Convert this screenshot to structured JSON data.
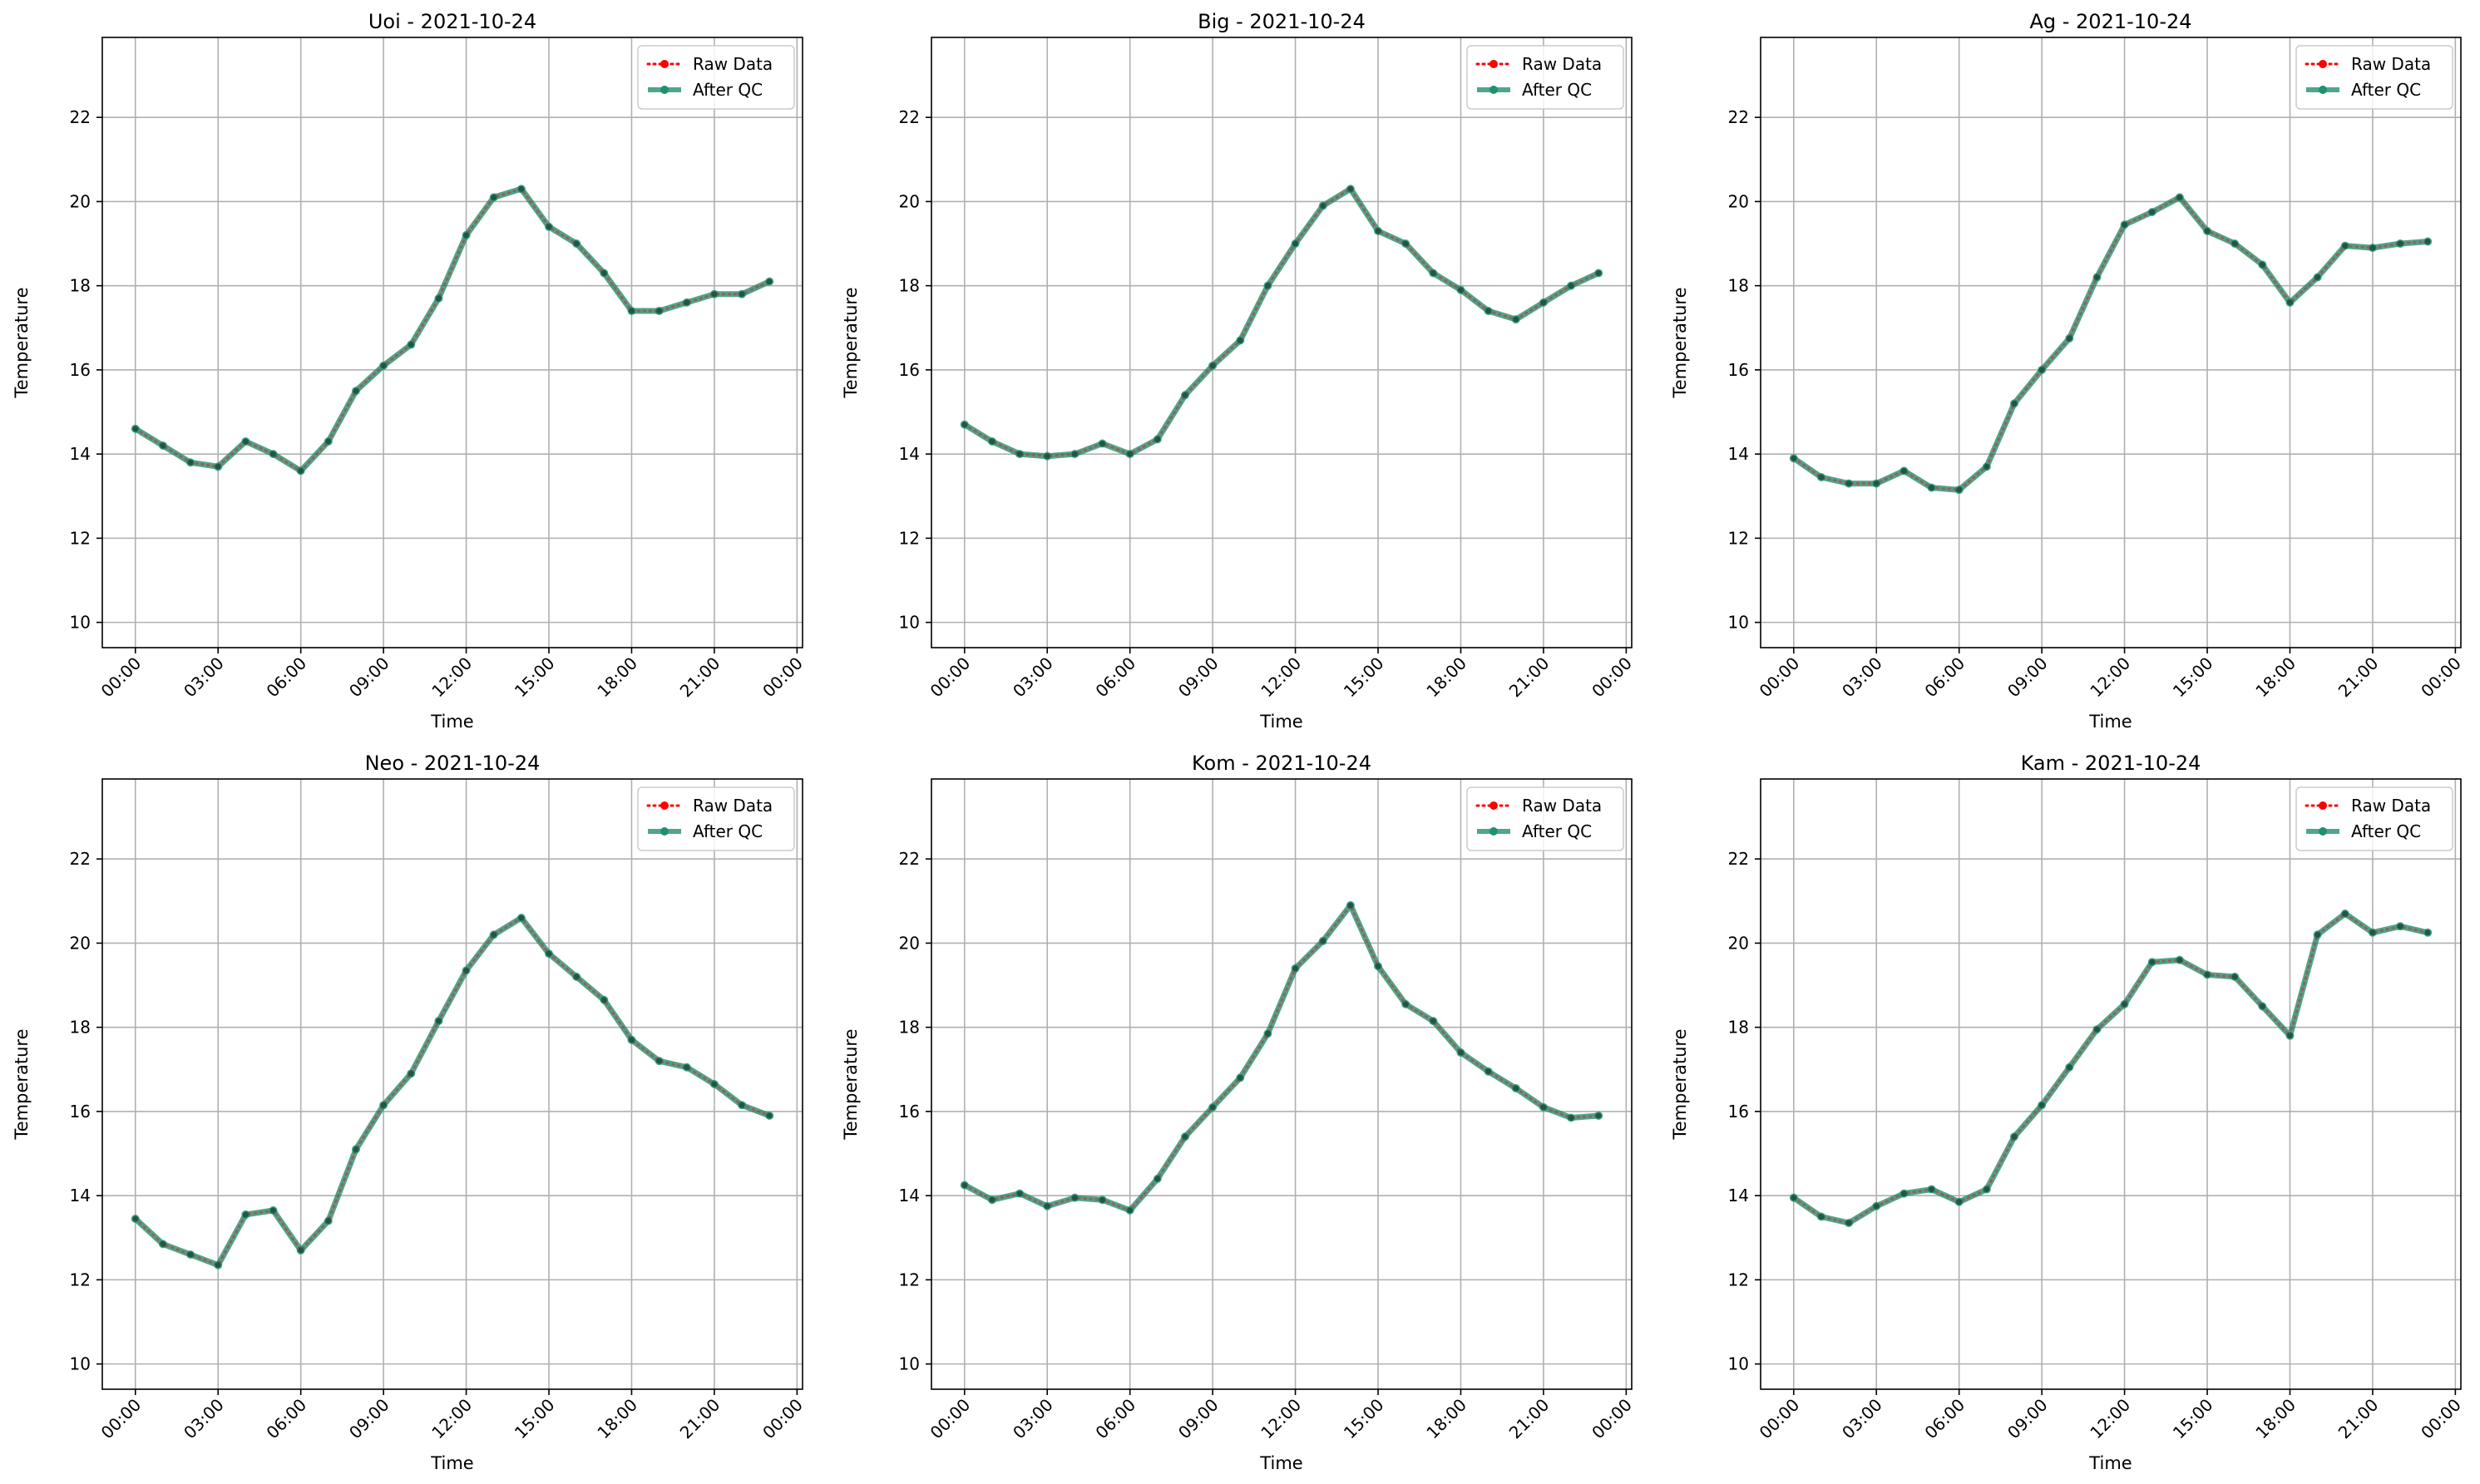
{
  "chart_data": [
    {
      "type": "line",
      "title": "Uoi - 2021-10-24",
      "xlabel": "Time",
      "ylabel": "Temperature",
      "x_tick_labels": [
        "00:00",
        "03:00",
        "06:00",
        "09:00",
        "12:00",
        "15:00",
        "18:00",
        "21:00",
        "00:00"
      ],
      "y_ticks": [
        10,
        12,
        14,
        16,
        18,
        20,
        22
      ],
      "xlim_hours": [
        -1.2,
        24.2
      ],
      "ylim": [
        9.4,
        23.9
      ],
      "grid": true,
      "legend_position": "upper right",
      "x_hours": [
        0,
        1,
        2,
        3,
        4,
        5,
        6,
        7,
        8,
        9,
        10,
        11,
        12,
        13,
        14,
        15,
        16,
        17,
        18,
        19,
        20,
        21,
        22,
        23
      ],
      "series": [
        {
          "name": "Raw Data",
          "color": "#ff0000",
          "style": "dotted",
          "marker": "circle",
          "values": [
            14.6,
            14.2,
            13.8,
            13.7,
            14.3,
            14.0,
            13.6,
            14.3,
            15.5,
            16.1,
            16.6,
            17.7,
            19.2,
            20.1,
            20.3,
            19.4,
            19.0,
            18.3,
            17.4,
            17.4,
            17.6,
            17.8,
            17.8,
            18.1
          ]
        },
        {
          "name": "After QC",
          "color": "#209070",
          "style": "solid",
          "marker": "circle",
          "values": [
            14.6,
            14.2,
            13.8,
            13.7,
            14.3,
            14.0,
            13.6,
            14.3,
            15.5,
            16.1,
            16.6,
            17.7,
            19.2,
            20.1,
            20.3,
            19.4,
            19.0,
            18.3,
            17.4,
            17.4,
            17.6,
            17.8,
            17.8,
            18.1
          ]
        }
      ]
    },
    {
      "type": "line",
      "title": "Big - 2021-10-24",
      "xlabel": "Time",
      "ylabel": "Temperature",
      "x_tick_labels": [
        "00:00",
        "03:00",
        "06:00",
        "09:00",
        "12:00",
        "15:00",
        "18:00",
        "21:00",
        "00:00"
      ],
      "y_ticks": [
        10,
        12,
        14,
        16,
        18,
        20,
        22
      ],
      "xlim_hours": [
        -1.2,
        24.2
      ],
      "ylim": [
        9.4,
        23.9
      ],
      "grid": true,
      "legend_position": "upper right",
      "x_hours": [
        0,
        1,
        2,
        3,
        4,
        5,
        6,
        7,
        8,
        9,
        10,
        11,
        12,
        13,
        14,
        15,
        16,
        17,
        18,
        19,
        20,
        21,
        22,
        23
      ],
      "series": [
        {
          "name": "Raw Data",
          "color": "#ff0000",
          "style": "dotted",
          "marker": "circle",
          "values": [
            14.7,
            14.3,
            14.0,
            13.95,
            14.0,
            14.25,
            14.0,
            14.35,
            15.4,
            16.1,
            16.7,
            18.0,
            19.0,
            19.9,
            20.3,
            19.3,
            19.0,
            18.3,
            17.9,
            17.4,
            17.2,
            17.6,
            18.0,
            18.3
          ]
        },
        {
          "name": "After QC",
          "color": "#209070",
          "style": "solid",
          "marker": "circle",
          "values": [
            14.7,
            14.3,
            14.0,
            13.95,
            14.0,
            14.25,
            14.0,
            14.35,
            15.4,
            16.1,
            16.7,
            18.0,
            19.0,
            19.9,
            20.3,
            19.3,
            19.0,
            18.3,
            17.9,
            17.4,
            17.2,
            17.6,
            18.0,
            18.3
          ]
        }
      ]
    },
    {
      "type": "line",
      "title": "Ag - 2021-10-24",
      "xlabel": "Time",
      "ylabel": "Temperature",
      "x_tick_labels": [
        "00:00",
        "03:00",
        "06:00",
        "09:00",
        "12:00",
        "15:00",
        "18:00",
        "21:00",
        "00:00"
      ],
      "y_ticks": [
        10,
        12,
        14,
        16,
        18,
        20,
        22
      ],
      "xlim_hours": [
        -1.2,
        24.2
      ],
      "ylim": [
        9.4,
        23.9
      ],
      "grid": true,
      "legend_position": "upper right",
      "x_hours": [
        0,
        1,
        2,
        3,
        4,
        5,
        6,
        7,
        8,
        9,
        10,
        11,
        12,
        13,
        14,
        15,
        16,
        17,
        18,
        19,
        20,
        21,
        22,
        23
      ],
      "series": [
        {
          "name": "Raw Data",
          "color": "#ff0000",
          "style": "dotted",
          "marker": "circle",
          "values": [
            13.9,
            13.45,
            13.3,
            13.3,
            13.6,
            13.2,
            13.15,
            13.7,
            15.2,
            16.0,
            16.75,
            18.2,
            19.45,
            19.75,
            20.1,
            19.3,
            19.0,
            18.5,
            17.6,
            18.2,
            18.95,
            18.9,
            19.0,
            19.05
          ]
        },
        {
          "name": "After QC",
          "color": "#209070",
          "style": "solid",
          "marker": "circle",
          "values": [
            13.9,
            13.45,
            13.3,
            13.3,
            13.6,
            13.2,
            13.15,
            13.7,
            15.2,
            16.0,
            16.75,
            18.2,
            19.45,
            19.75,
            20.1,
            19.3,
            19.0,
            18.5,
            17.6,
            18.2,
            18.95,
            18.9,
            19.0,
            19.05
          ]
        }
      ]
    },
    {
      "type": "line",
      "title": "Neo - 2021-10-24",
      "xlabel": "Time",
      "ylabel": "Temperature",
      "x_tick_labels": [
        "00:00",
        "03:00",
        "06:00",
        "09:00",
        "12:00",
        "15:00",
        "18:00",
        "21:00",
        "00:00"
      ],
      "y_ticks": [
        10,
        12,
        14,
        16,
        18,
        20,
        22
      ],
      "xlim_hours": [
        -1.2,
        24.2
      ],
      "ylim": [
        9.4,
        23.9
      ],
      "grid": true,
      "legend_position": "upper right",
      "x_hours": [
        0,
        1,
        2,
        3,
        4,
        5,
        6,
        7,
        8,
        9,
        10,
        11,
        12,
        13,
        14,
        15,
        16,
        17,
        18,
        19,
        20,
        21,
        22,
        23
      ],
      "series": [
        {
          "name": "Raw Data",
          "color": "#ff0000",
          "style": "dotted",
          "marker": "circle",
          "values": [
            13.45,
            12.85,
            12.6,
            12.35,
            13.55,
            13.65,
            12.7,
            13.4,
            15.1,
            16.15,
            16.9,
            18.15,
            19.35,
            20.2,
            20.6,
            19.75,
            19.2,
            18.65,
            17.7,
            17.2,
            17.05,
            16.65,
            16.15,
            15.9
          ]
        },
        {
          "name": "After QC",
          "color": "#209070",
          "style": "solid",
          "marker": "circle",
          "values": [
            13.45,
            12.85,
            12.6,
            12.35,
            13.55,
            13.65,
            12.7,
            13.4,
            15.1,
            16.15,
            16.9,
            18.15,
            19.35,
            20.2,
            20.6,
            19.75,
            19.2,
            18.65,
            17.7,
            17.2,
            17.05,
            16.65,
            16.15,
            15.9
          ]
        }
      ]
    },
    {
      "type": "line",
      "title": "Kom - 2021-10-24",
      "xlabel": "Time",
      "ylabel": "Temperature",
      "x_tick_labels": [
        "00:00",
        "03:00",
        "06:00",
        "09:00",
        "12:00",
        "15:00",
        "18:00",
        "21:00",
        "00:00"
      ],
      "y_ticks": [
        10,
        12,
        14,
        16,
        18,
        20,
        22
      ],
      "xlim_hours": [
        -1.2,
        24.2
      ],
      "ylim": [
        9.4,
        23.9
      ],
      "grid": true,
      "legend_position": "upper right",
      "x_hours": [
        0,
        1,
        2,
        3,
        4,
        5,
        6,
        7,
        8,
        9,
        10,
        11,
        12,
        13,
        14,
        15,
        16,
        17,
        18,
        19,
        20,
        21,
        22,
        23
      ],
      "series": [
        {
          "name": "Raw Data",
          "color": "#ff0000",
          "style": "dotted",
          "marker": "circle",
          "values": [
            14.25,
            13.9,
            14.05,
            13.75,
            13.95,
            13.9,
            13.65,
            14.4,
            15.4,
            16.1,
            16.8,
            17.85,
            19.4,
            20.05,
            20.9,
            19.45,
            18.55,
            18.15,
            17.4,
            16.95,
            16.55,
            16.1,
            15.85,
            15.9
          ]
        },
        {
          "name": "After QC",
          "color": "#209070",
          "style": "solid",
          "marker": "circle",
          "values": [
            14.25,
            13.9,
            14.05,
            13.75,
            13.95,
            13.9,
            13.65,
            14.4,
            15.4,
            16.1,
            16.8,
            17.85,
            19.4,
            20.05,
            20.9,
            19.45,
            18.55,
            18.15,
            17.4,
            16.95,
            16.55,
            16.1,
            15.85,
            15.9
          ]
        }
      ]
    },
    {
      "type": "line",
      "title": "Kam - 2021-10-24",
      "xlabel": "Time",
      "ylabel": "Temperature",
      "x_tick_labels": [
        "00:00",
        "03:00",
        "06:00",
        "09:00",
        "12:00",
        "15:00",
        "18:00",
        "21:00",
        "00:00"
      ],
      "y_ticks": [
        10,
        12,
        14,
        16,
        18,
        20,
        22
      ],
      "xlim_hours": [
        -1.2,
        24.2
      ],
      "ylim": [
        9.4,
        23.9
      ],
      "grid": true,
      "legend_position": "upper right",
      "x_hours": [
        0,
        1,
        2,
        3,
        4,
        5,
        6,
        7,
        8,
        9,
        10,
        11,
        12,
        13,
        14,
        15,
        16,
        17,
        18,
        19,
        20,
        21,
        22,
        23
      ],
      "series": [
        {
          "name": "Raw Data",
          "color": "#ff0000",
          "style": "dotted",
          "marker": "circle",
          "values": [
            13.95,
            13.5,
            13.35,
            13.75,
            14.05,
            14.15,
            13.85,
            14.15,
            15.4,
            16.15,
            17.05,
            17.95,
            18.55,
            19.55,
            19.6,
            19.25,
            19.2,
            18.5,
            17.8,
            20.2,
            20.7,
            20.25,
            20.4,
            20.25
          ]
        },
        {
          "name": "After QC",
          "color": "#209070",
          "style": "solid",
          "marker": "circle",
          "values": [
            13.95,
            13.5,
            13.35,
            13.75,
            14.05,
            14.15,
            13.85,
            14.15,
            15.4,
            16.15,
            17.05,
            17.95,
            18.55,
            19.55,
            19.6,
            19.25,
            19.2,
            18.5,
            17.8,
            20.2,
            20.7,
            20.25,
            20.4,
            20.25
          ]
        }
      ]
    }
  ]
}
